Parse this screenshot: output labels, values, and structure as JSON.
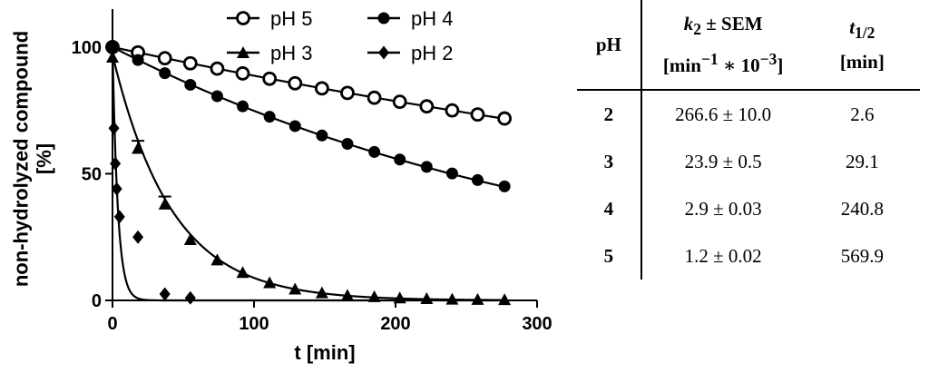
{
  "chart_data": {
    "type": "line",
    "title": "",
    "xlabel": "t [min]",
    "ylabel": "non-hydrolyzed compound [%]",
    "xlim": [
      0,
      300
    ],
    "ylim": [
      0,
      115
    ],
    "xticks": [
      0,
      100,
      200,
      300
    ],
    "yticks": [
      0,
      50,
      100
    ],
    "grid": false,
    "legend_position": "top",
    "series": [
      {
        "name": "pH 5",
        "marker": "open-circle",
        "x": [
          0,
          18,
          37,
          55,
          74,
          92,
          111,
          129,
          148,
          166,
          185,
          203,
          222,
          240,
          258,
          277
        ],
        "y": [
          100,
          97.9,
          95.6,
          93.6,
          91.5,
          89.6,
          87.5,
          85.7,
          83.7,
          81.9,
          80.0,
          78.4,
          76.6,
          75.0,
          73.4,
          71.8
        ]
      },
      {
        "name": "pH 4",
        "marker": "filled-circle",
        "x": [
          0,
          18,
          37,
          55,
          74,
          92,
          111,
          129,
          148,
          166,
          185,
          203,
          222,
          240,
          258,
          277
        ],
        "y": [
          100,
          94.9,
          89.7,
          85.1,
          80.6,
          76.6,
          72.5,
          68.8,
          65.1,
          61.8,
          58.6,
          55.6,
          52.7,
          50.1,
          47.5,
          45.0
        ]
      },
      {
        "name": "pH 3",
        "marker": "triangle",
        "x": [
          0,
          18,
          37,
          55,
          74,
          92,
          111,
          129,
          148,
          166,
          185,
          203,
          222,
          240,
          258,
          277
        ],
        "y": [
          96,
          60,
          38,
          24,
          16,
          11,
          7,
          4.5,
          3,
          2,
          1.5,
          1,
          0.7,
          0.5,
          0.4,
          0.3
        ],
        "error": [
          0,
          3,
          3,
          0,
          0,
          0,
          0,
          0,
          0,
          0,
          0,
          0,
          0,
          0,
          0,
          0
        ]
      },
      {
        "name": "pH 2",
        "marker": "diamond",
        "x": [
          0,
          1,
          2,
          3,
          5,
          18,
          37,
          55
        ],
        "y": [
          100,
          68,
          54,
          44,
          33,
          25,
          2.5,
          1
        ]
      }
    ],
    "fits": [
      {
        "series": "pH 5",
        "k_per_min": 0.0012,
        "a": 100
      },
      {
        "series": "pH 4",
        "k_per_min": 0.0029,
        "a": 100
      },
      {
        "series": "pH 3",
        "k_per_min": 0.0239,
        "a": 97
      },
      {
        "series": "pH 2",
        "k_per_min": 0.2666,
        "a": 100
      }
    ]
  },
  "table": {
    "headers": {
      "ph": "pH",
      "k_main": "k",
      "k_sub": "2",
      "k_suffix": " ± SEM",
      "k_unit_1": "[min",
      "k_unit_sup1": "−1",
      "k_unit_2": " ∗ 10",
      "k_unit_sup2": "−3",
      "k_unit_3": "]",
      "t_main": "t",
      "t_sub": "1/2",
      "t_unit": "[min]"
    },
    "rows": [
      {
        "ph": "2",
        "k": "266.6 ± 10.0",
        "t": "2.6"
      },
      {
        "ph": "3",
        "k": "23.9 ± 0.5",
        "t": "29.1"
      },
      {
        "ph": "4",
        "k": "2.9 ± 0.03",
        "t": "240.8"
      },
      {
        "ph": "5",
        "k": "1.2 ± 0.02",
        "t": "569.9"
      }
    ]
  }
}
